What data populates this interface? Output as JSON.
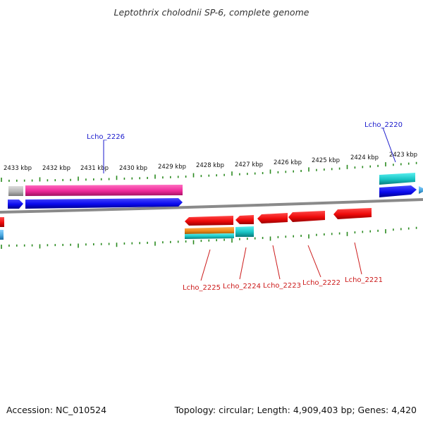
{
  "title": "Leptothrix cholodnii SP-6, complete genome",
  "footer": {
    "accession": "Accession: NC_010524",
    "summary": "Topology: circular; Length: 4,909,403 bp; Genes: 4,420"
  },
  "colors": {
    "tick": "#2a8a1f",
    "backbone": "#8a8a8a",
    "forward_label": "#1a1acc",
    "reverse_label": "#cc1a1a",
    "red": "#ee1111",
    "blue": "#1111ee",
    "magenta": "#ee2a9a",
    "cyan": "#18c4c4",
    "orange": "#f08a1a",
    "gray": "#b4b4b4",
    "lightblue": "#4aa8e0"
  },
  "ruler": {
    "labels": [
      "2433 kbp",
      "2432 kbp",
      "2431 kbp",
      "2430 kbp",
      "2429 kbp",
      "2428 kbp",
      "2427 kbp",
      "2426 kbp",
      "2425 kbp",
      "2424 kbp",
      "2423 kbp"
    ]
  },
  "genes": [
    {
      "name": "Lcho_2220",
      "strand": "forward",
      "labeled": true,
      "color": "blue",
      "product_color": "cyan"
    },
    {
      "name": "Lcho_2221",
      "strand": "reverse",
      "labeled": true,
      "color": "red"
    },
    {
      "name": "Lcho_2222",
      "strand": "reverse",
      "labeled": true,
      "color": "red"
    },
    {
      "name": "Lcho_2223",
      "strand": "reverse",
      "labeled": true,
      "color": "red"
    },
    {
      "name": "Lcho_2224",
      "strand": "reverse",
      "labeled": true,
      "color": "red",
      "product_color": "cyan"
    },
    {
      "name": "Lcho_2225",
      "strand": "reverse",
      "labeled": true,
      "color": "red",
      "product_color": "orange"
    },
    {
      "name": "Lcho_2226",
      "strand": "forward",
      "labeled": true,
      "color": "blue",
      "product_color": "magenta"
    }
  ]
}
